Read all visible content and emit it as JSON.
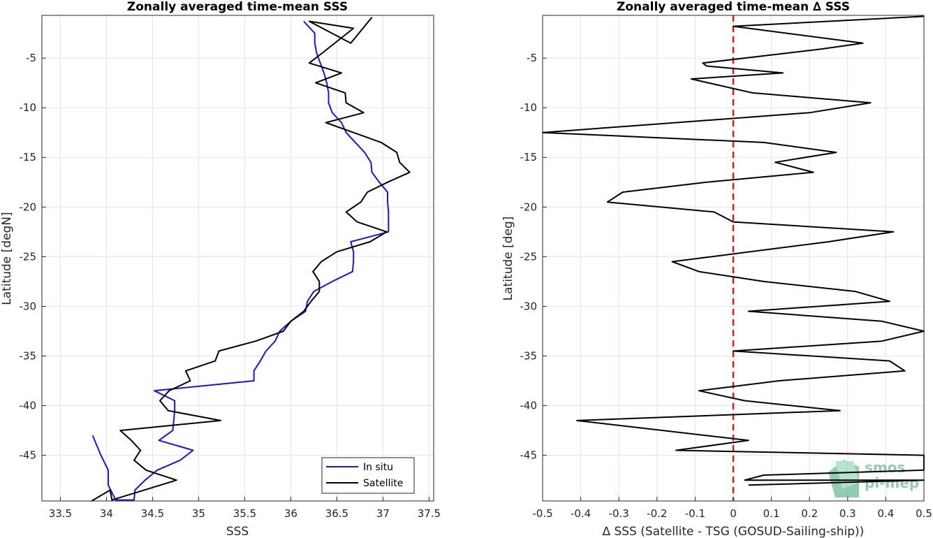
{
  "chart_data": [
    {
      "type": "line",
      "title": "Zonally averaged time-mean SSS",
      "xlabel": "SSS",
      "ylabel": "Latitude [degN]",
      "xlim": [
        33.3,
        37.55
      ],
      "ylim": [
        -49.6,
        -0.7
      ],
      "xticks": [
        33.5,
        34,
        34.5,
        35,
        35.5,
        36,
        36.5,
        37,
        37.5
      ],
      "xtick_labels": [
        "33.5",
        "34",
        "34.5",
        "35",
        "35.5",
        "36",
        "36.5",
        "37",
        "37.5"
      ],
      "yticks": [
        -5,
        -10,
        -15,
        -20,
        -25,
        -30,
        -35,
        -40,
        -45
      ],
      "ytick_labels": [
        "-5",
        "-10",
        "-15",
        "-20",
        "-25",
        "-30",
        "-35",
        "-40",
        "-45"
      ],
      "grid": true,
      "legend_position": "bottom-right",
      "series": [
        {
          "name": "In situ",
          "color": "#1414e6",
          "x": [
            36.14,
            36.26,
            36.26,
            36.28,
            36.32,
            36.36,
            36.39,
            36.41,
            36.41,
            36.45,
            36.55,
            36.6,
            36.7,
            36.8,
            36.87,
            36.88,
            36.96,
            37.05,
            37.05,
            37.06,
            37.06,
            37.06,
            36.65,
            36.68,
            36.68,
            36.67,
            36.45,
            36.25,
            36.18,
            36.16,
            36.0,
            35.88,
            35.83,
            35.73,
            35.67,
            35.6,
            35.6,
            34.52,
            34.74,
            34.74,
            34.73,
            34.72,
            34.57,
            34.94,
            34.8,
            34.55,
            34.42,
            34.31,
            34.3,
            34.1,
            34.02,
            34.02,
            33.94,
            33.85
          ],
          "y": [
            -1.3,
            -2.5,
            -3.5,
            -4.5,
            -5.5,
            -6.5,
            -7.5,
            -8.5,
            -9.5,
            -10.5,
            -11.5,
            -12.5,
            -13.5,
            -14.5,
            -15.5,
            -16.5,
            -17.5,
            -18.5,
            -19.5,
            -20.5,
            -21.5,
            -22.5,
            -23.5,
            -24.5,
            -25.5,
            -26.5,
            -27.5,
            -28.5,
            -29.5,
            -30.5,
            -31.5,
            -32.5,
            -33.5,
            -34.5,
            -35.5,
            -36.5,
            -37.5,
            -38.5,
            -39.5,
            -40.5,
            -41.5,
            -42.5,
            -43.5,
            -44.5,
            -45.5,
            -46.5,
            -47.5,
            -48.5,
            -49.5,
            -49.5,
            -48.0,
            -46.5,
            -45.0,
            -43.0
          ]
        },
        {
          "name": "Satellite",
          "color": "#000000",
          "x": [
            36.88,
            36.65,
            36.2,
            36.68,
            36.34,
            36.2,
            36.55,
            36.27,
            36.59,
            36.6,
            36.79,
            36.38,
            36.98,
            37.15,
            37.18,
            37.29,
            37.05,
            36.83,
            36.76,
            36.6,
            36.72,
            37.04,
            36.86,
            36.5,
            36.33,
            36.24,
            36.31,
            36.31,
            36.22,
            36.14,
            36.0,
            35.92,
            35.62,
            35.22,
            35.18,
            34.86,
            34.91,
            34.68,
            34.58,
            34.67,
            35.24,
            34.15,
            34.27,
            34.37,
            34.3,
            34.43,
            34.76,
            34.41,
            34.06,
            34.04,
            33.84
          ],
          "y": [
            -0.9,
            -3.5,
            -1.3,
            -2.0,
            -4.5,
            -5.5,
            -6.5,
            -7.5,
            -8.5,
            -9.5,
            -10.5,
            -11.5,
            -13.5,
            -14.5,
            -15.5,
            -16.5,
            -17.5,
            -18.5,
            -19.5,
            -20.5,
            -21.5,
            -22.5,
            -23.5,
            -24.5,
            -25.5,
            -26.5,
            -27.5,
            -28.5,
            -29.5,
            -30.5,
            -31.5,
            -32.5,
            -33.5,
            -34.5,
            -35.5,
            -36.5,
            -37.5,
            -38.5,
            -39.5,
            -40.5,
            -41.5,
            -42.5,
            -43.5,
            -44.5,
            -45.5,
            -46.5,
            -47.5,
            -48.5,
            -49.5,
            -48.5,
            -49.6
          ]
        }
      ]
    },
    {
      "type": "line",
      "title": "Zonally averaged time-mean ∆ SSS",
      "xlabel": "∆ SSS (Satellite - TSG (GOSUD-Sailing-ship))",
      "ylabel": "Latitude [deg]",
      "xlim": [
        -0.5,
        0.5
      ],
      "ylim": [
        -49.6,
        -0.7
      ],
      "xticks": [
        -0.5,
        -0.4,
        -0.3,
        -0.2,
        -0.1,
        0,
        0.1,
        0.2,
        0.3,
        0.4,
        0.5
      ],
      "xtick_labels": [
        "-0.5",
        "-0.4",
        "-0.3",
        "-0.2",
        "-0.1",
        "0",
        "0.1",
        "0.2",
        "0.3",
        "0.4",
        "0.5"
      ],
      "yticks": [
        -5,
        -10,
        -15,
        -20,
        -25,
        -30,
        -35,
        -40,
        -45
      ],
      "ytick_labels": [
        "-5",
        "-10",
        "-15",
        "-20",
        "-25",
        "-30",
        "-35",
        "-40",
        "-45"
      ],
      "grid": true,
      "zero_line": {
        "x": 0,
        "color": "#e61919",
        "style": "dashed"
      },
      "series": [
        {
          "color": "#000000",
          "x": [
            0.5,
            0.0,
            0.34,
            0.23,
            -0.08,
            -0.07,
            0.13,
            -0.11,
            0.05,
            0.36,
            0.2,
            -0.5,
            0.08,
            0.27,
            0.11,
            0.21,
            -0.07,
            -0.29,
            -0.33,
            -0.05,
            0.0,
            0.42,
            0.25,
            -0.16,
            -0.09,
            0.08,
            0.32,
            0.41,
            0.04,
            0.39,
            0.5,
            0.39,
            0.0,
            0.41,
            0.45,
            0.12,
            -0.09,
            0.03,
            0.28,
            -0.41,
            0.04,
            -0.15,
            0.5,
            0.5,
            0.08,
            0.03,
            0.5,
            0.04
          ],
          "y": [
            -0.8,
            -1.8,
            -3.5,
            -4.1,
            -5.5,
            -5.8,
            -6.5,
            -7.1,
            -8.5,
            -9.5,
            -10.5,
            -12.5,
            -13.5,
            -14.5,
            -15.5,
            -16.5,
            -17.5,
            -18.5,
            -19.5,
            -20.5,
            -21.5,
            -22.5,
            -23.5,
            -25.5,
            -26.5,
            -27.5,
            -28.5,
            -29.5,
            -30.5,
            -31.5,
            -32.5,
            -33.5,
            -34.5,
            -35.5,
            -36.5,
            -37.5,
            -38.5,
            -39.5,
            -40.5,
            -41.5,
            -43.5,
            -44.5,
            -45.0,
            -46.5,
            -47.0,
            -47.5,
            -47.5,
            -48.0
          ]
        }
      ]
    }
  ],
  "watermark": {
    "line1": "smos",
    "line2": "pi-mep",
    "color": "#3aa675"
  }
}
